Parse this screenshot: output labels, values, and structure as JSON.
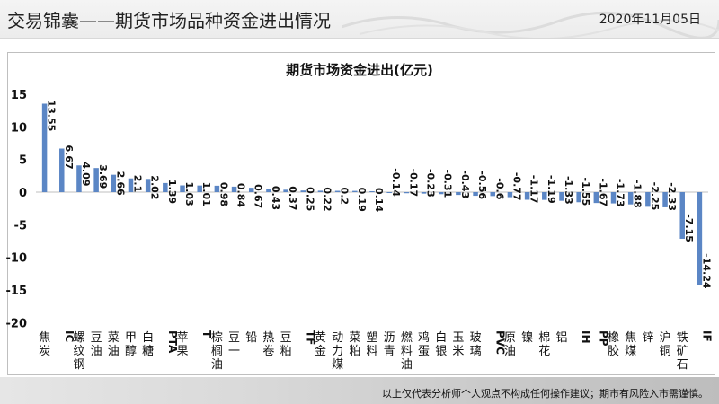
{
  "header": {
    "title": "交易锦囊——期货市场品种资金进出情况",
    "date": "2020年11月05日"
  },
  "footer": {
    "disclaimer": "以上仅代表分析师个人观点不构成任何操作建议；期市有风险入市需谨慎。"
  },
  "colors": {
    "bar": "#5b86c5",
    "axis": "#bfbfbf",
    "text": "#111111"
  },
  "chart_data": {
    "type": "bar",
    "title": "期货市场资金进出(亿元)",
    "xlabel": "",
    "ylabel": "",
    "ylim": [
      -20,
      15
    ],
    "yticks": [
      15,
      10,
      5,
      0,
      -5,
      -10,
      -15,
      -20
    ],
    "grid": false,
    "legend": "none",
    "categories": [
      "焦炭",
      "IC",
      "螺纹钢",
      "豆油",
      "菜油",
      "甲醇",
      "白糖",
      "PTA",
      "苹果",
      "T",
      "棕榈油",
      "豆一",
      "铅",
      "热卷",
      "豆粕",
      "TF",
      "黄金",
      "动力煤",
      "菜粕",
      "塑料",
      "沥青",
      "燃料油",
      "鸡蛋",
      "白银",
      "玉米",
      "玻璃",
      "PVC",
      "原油",
      "镍",
      "棉花",
      "铝",
      "IH",
      "PP",
      "橡胶",
      "焦煤",
      "锌",
      "沪铜",
      "铁矿石",
      "IF"
    ],
    "values": [
      13.55,
      6.67,
      4.09,
      3.69,
      2.66,
      2.1,
      2.02,
      1.39,
      1.03,
      1.01,
      0.98,
      0.84,
      0.67,
      0.43,
      0.37,
      0.25,
      0.22,
      0.2,
      0.19,
      0.14,
      -0.14,
      -0.17,
      -0.23,
      -0.31,
      -0.43,
      -0.56,
      -0.6,
      -0.77,
      -1.17,
      -1.19,
      -1.33,
      -1.55,
      -1.67,
      -1.73,
      -1.88,
      -2.25,
      -2.33,
      -7.15,
      -14.24
    ],
    "value_labels": [
      "13.55",
      "6.67",
      "4.09",
      "3.69",
      "2.66",
      "2.1",
      "2.02",
      "1.39",
      "1.03",
      "1.01",
      "0.98",
      "0.84",
      "0.67",
      "0.43",
      "0.37",
      "0.25",
      "0.22",
      "0.2",
      "0.19",
      "0.14",
      "-0.14",
      "-0.17",
      "-0.23",
      "-0.31",
      "-0.43",
      "-0.56",
      "-0.6",
      "-0.77",
      "-1.17",
      "-1.19",
      "-1.33",
      "-1.55",
      "-1.67",
      "-1.73",
      "-1.88",
      "-2.25",
      "-2.33",
      "-7.15",
      "-14.24"
    ]
  }
}
